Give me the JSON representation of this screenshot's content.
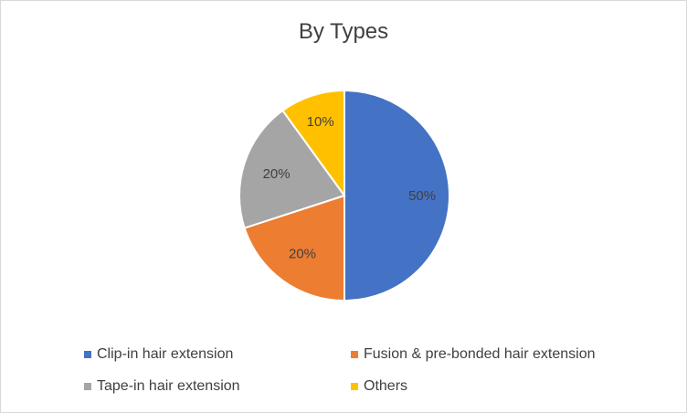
{
  "chart_data": {
    "type": "pie",
    "title": "By Types",
    "slices": [
      {
        "name": "Clip-in hair extension",
        "value": 50,
        "label": "50%",
        "color": "#4472c4"
      },
      {
        "name": "Fusion & pre-bonded hair extension",
        "value": 20,
        "label": "20%",
        "color": "#ed7d31"
      },
      {
        "name": "Tape-in hair extension",
        "value": 20,
        "label": "20%",
        "color": "#a5a5a5"
      },
      {
        "name": "Others",
        "value": 10,
        "label": "10%",
        "color": "#ffc000"
      }
    ],
    "legend": "bottom",
    "start_angle": "top",
    "direction": "clockwise"
  }
}
